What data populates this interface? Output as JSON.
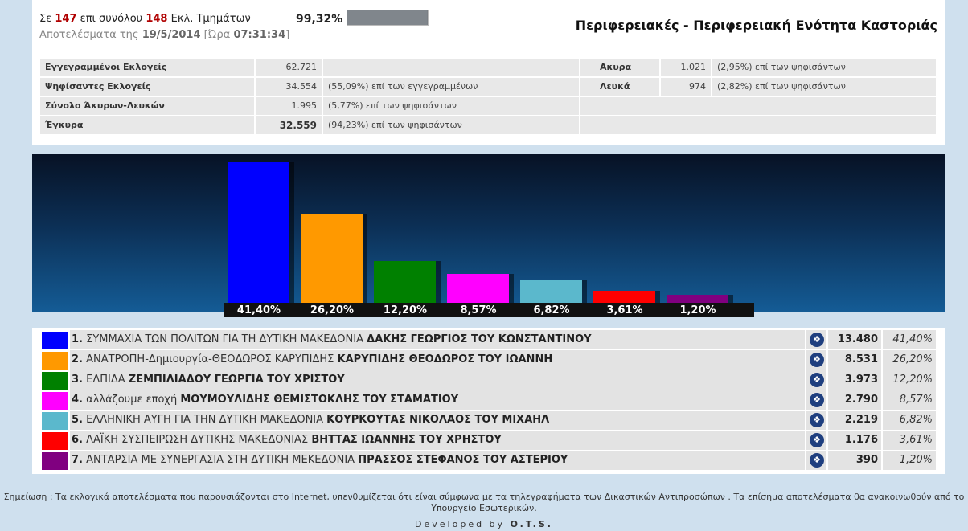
{
  "header": {
    "reported_prefix": "Σε",
    "reported_count": "147",
    "reported_mid": "επι συνόλου",
    "total_count": "148",
    "reported_suffix": "Εκλ. Τμημάτων",
    "percent": "99,32%",
    "progress_fraction": 0.9932,
    "results_prefix": "Αποτελέσματα της",
    "date": "19/5/2014",
    "time_prefix": "[Ώρα",
    "time": "07:31:34",
    "time_suffix": "]",
    "title": "Περιφερειακές - Περιφερειακή Ενότητα Καστοριάς"
  },
  "stats": {
    "registered_label": "Εγγεγραμμένοι Εκλογείς",
    "registered_value": "62.721",
    "voted_label": "Ψηφίσαντες Εκλογείς",
    "voted_value": "34.554",
    "voted_note": "(55,09%) επί των εγγεγραμμένων",
    "invalid_blank_label": "Σύνολο Άκυρων-Λευκών",
    "invalid_blank_value": "1.995",
    "invalid_blank_note": "(5,77%) επί των ψηφισάντων",
    "valid_label": "Έγκυρα",
    "valid_value": "32.559",
    "valid_note": "(94,23%) επί των ψηφισάντων",
    "invalid_label": "Ακυρα",
    "invalid_value": "1.021",
    "invalid_note": "(2,95%) επί των ψηφισάντων",
    "blank_label": "Λευκά",
    "blank_value": "974",
    "blank_note": "(2,82%) επί των ψηφισάντων"
  },
  "chart_data": {
    "type": "bar",
    "categories": [
      "1",
      "2",
      "3",
      "4",
      "5",
      "6",
      "7"
    ],
    "values": [
      41.4,
      26.2,
      12.2,
      8.57,
      6.82,
      3.61,
      1.2
    ],
    "value_labels": [
      "41,40%",
      "26,20%",
      "12,20%",
      "8,57%",
      "6,82%",
      "3,61%",
      "1,20%"
    ],
    "colors": [
      "#0000ff",
      "#ff9900",
      "#008000",
      "#ff00ff",
      "#5bb8cc",
      "#ff0000",
      "#800080"
    ]
  },
  "results": [
    {
      "num": "1.",
      "party": "ΣΥΜΜΑΧΙΑ ΤΩΝ ΠΟΛΙΤΩΝ ΓΙΑ ΤΗ ΔΥΤΙΚΗ ΜΑΚΕΔΟΝΙΑ",
      "candidate": "ΔΑΚΗΣ ΓΕΩΡΓΙΟΣ ΤΟΥ ΚΩΝΣΤΑΝΤΙΝΟΥ",
      "votes": "13.480",
      "percent": "41,40%",
      "color": "#0000ff"
    },
    {
      "num": "2.",
      "party": "ΑΝΑΤΡΟΠΗ-Δημιουργία-ΘΕΟΔΩΡΟΣ ΚΑΡΥΠΙΔΗΣ",
      "candidate": "ΚΑΡΥΠΙΔΗΣ ΘΕΟΔΩΡΟΣ ΤΟΥ ΙΩΑΝΝΗ",
      "votes": "8.531",
      "percent": "26,20%",
      "color": "#ff9900"
    },
    {
      "num": "3.",
      "party": "ΕΛΠΙΔΑ",
      "candidate": "ΖΕΜΠΙΛΙΑΔΟΥ ΓΕΩΡΓΙΑ ΤΟΥ ΧΡΙΣΤΟΥ",
      "votes": "3.973",
      "percent": "12,20%",
      "color": "#008000"
    },
    {
      "num": "4.",
      "party": "αλλάζουμε εποχή",
      "candidate": "ΜΟΥΜΟΥΛΙΔΗΣ ΘΕΜΙΣΤΟΚΛΗΣ ΤΟΥ ΣΤΑΜΑΤΙΟΥ",
      "votes": "2.790",
      "percent": "8,57%",
      "color": "#ff00ff"
    },
    {
      "num": "5.",
      "party": "ΕΛΛΗΝΙΚΗ ΑΥΓΗ ΓΙΑ ΤΗΝ ΔΥΤΙΚΗ ΜΑΚΕΔΟΝΙΑ",
      "candidate": "ΚΟΥΡΚΟΥΤΑΣ ΝΙΚΟΛΑΟΣ ΤΟΥ ΜΙΧΑΗΛ",
      "votes": "2.219",
      "percent": "6,82%",
      "color": "#5bb8cc"
    },
    {
      "num": "6.",
      "party": "ΛΑΪΚΗ ΣΥΣΠΕΙΡΩΣΗ ΔΥΤΙΚΗΣ ΜΑΚΕΔΟΝΙΑΣ",
      "candidate": "ΒΗΤΤΑΣ ΙΩΑΝΝΗΣ ΤΟΥ ΧΡΗΣΤΟΥ",
      "votes": "1.176",
      "percent": "3,61%",
      "color": "#ff0000"
    },
    {
      "num": "7.",
      "party": "ΑΝΤΑΡΣΙΑ ΜΕ ΣΥΝΕΡΓΑΣΙΑ ΣΤΗ ΔΥΤΙΚΗ ΜΕΚΕΔΟΝΙΑ",
      "candidate": "ΠΡΑΣΣΟΣ ΣΤΕΦΑΝΟΣ ΤΟΥ ΑΣΤΕΡΙΟΥ",
      "votes": "390",
      "percent": "1,20%",
      "color": "#800080"
    }
  ],
  "icons": {
    "candidates": "people-icon"
  },
  "footer": {
    "note": "Σημείωση : Τα εκλογικά αποτελέσματα που παρουσιάζονται στο Internet, υπενθυμίζεται ότι είναι σύμφωνα με τα τηλεγραφήματα των Δικαστικών Αντιπροσώπων . Τα επίσημα αποτελέσματα θα ανακοινωθούν από το Υπουργείο Εσωτερικών.",
    "developed_prefix": "Developed by",
    "developer": "O.T.S."
  }
}
